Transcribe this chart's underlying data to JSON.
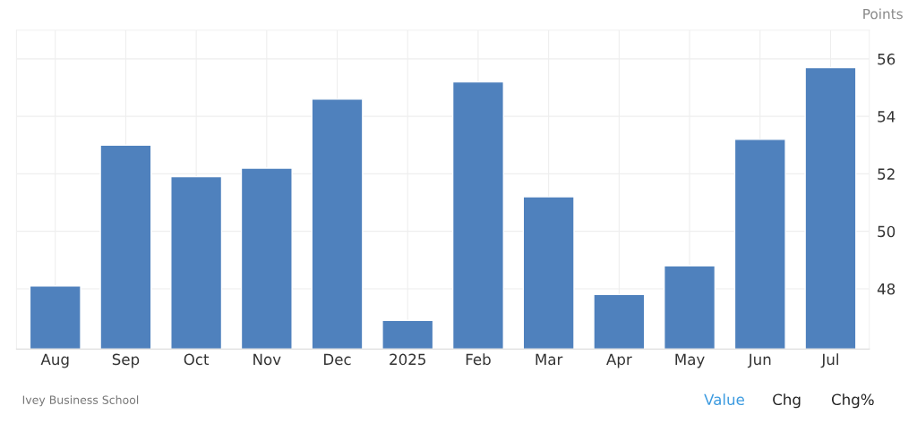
{
  "chart_data": {
    "type": "bar",
    "categories": [
      "Aug",
      "Sep",
      "Oct",
      "Nov",
      "Dec",
      "2025",
      "Feb",
      "Mar",
      "Apr",
      "May",
      "Jun",
      "Jul"
    ],
    "values": [
      48.1,
      53.0,
      51.9,
      52.2,
      54.6,
      46.9,
      55.2,
      51.2,
      47.8,
      48.8,
      53.2,
      55.7
    ],
    "color": "#4f81bd",
    "ylabel": "Points",
    "ylim": [
      45.9,
      57
    ],
    "yticks": [
      48,
      50,
      52,
      54,
      56
    ],
    "grid": true,
    "annotations": [
      "Ivey Business School",
      "Value",
      "Chg",
      "Chg%"
    ]
  }
}
